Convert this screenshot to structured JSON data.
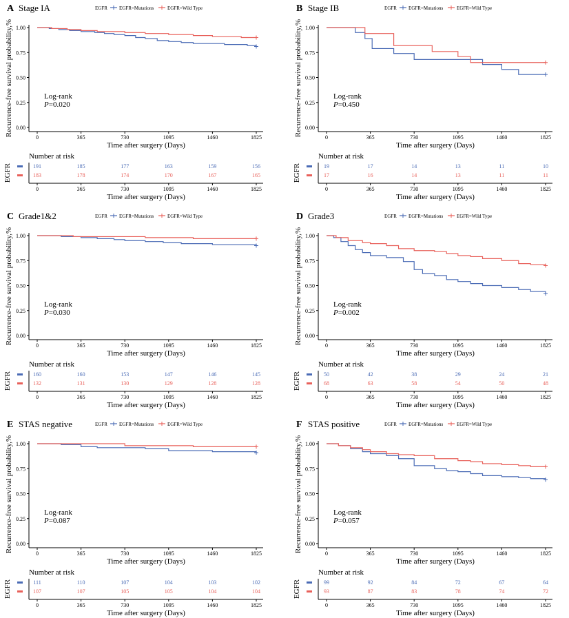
{
  "colors": {
    "mutation": "#4a6bb5",
    "wild": "#e8605a"
  },
  "chart_data": [
    {
      "type": "line",
      "letter": "A",
      "title": "Stage IA",
      "legend_title": "EGFR",
      "legend_placement": "top",
      "legend_items": [
        "EGFR=Mutations",
        "EGFR=Wild Type"
      ],
      "ylabel": "Recurrence-free survival probability,%",
      "xlabel": "Time after surgery (Days)",
      "x_ticks": [
        "0",
        "365",
        "730",
        "1095",
        "1460",
        "1825"
      ],
      "y_ticks": [
        "0.00",
        "0.25",
        "0.50",
        "0.75",
        "1.00"
      ],
      "xlim": [
        0,
        1825
      ],
      "ylim": [
        0,
        1
      ],
      "logrank": "Log-rank",
      "p_label": "P",
      "p_value": "=0.020",
      "series": [
        {
          "name": "EGFR=Mutations",
          "x": [
            0,
            100,
            180,
            270,
            365,
            480,
            560,
            640,
            730,
            820,
            900,
            1000,
            1095,
            1200,
            1300,
            1400,
            1460,
            1560,
            1650,
            1750,
            1825
          ],
          "y": [
            1,
            0.99,
            0.98,
            0.97,
            0.96,
            0.95,
            0.94,
            0.93,
            0.92,
            0.9,
            0.89,
            0.87,
            0.86,
            0.85,
            0.84,
            0.84,
            0.84,
            0.83,
            0.83,
            0.82,
            0.81
          ]
        },
        {
          "name": "EGFR=Wild Type",
          "x": [
            0,
            120,
            250,
            365,
            500,
            730,
            900,
            1095,
            1300,
            1460,
            1600,
            1700,
            1825
          ],
          "y": [
            1,
            0.99,
            0.98,
            0.97,
            0.96,
            0.95,
            0.94,
            0.93,
            0.92,
            0.91,
            0.91,
            0.9,
            0.9
          ]
        }
      ],
      "risk_title": "Number at risk",
      "risk_label": "EGFR",
      "risk": [
        [
          "191",
          "185",
          "177",
          "163",
          "159",
          "156"
        ],
        [
          "183",
          "178",
          "174",
          "170",
          "167",
          "165"
        ]
      ]
    },
    {
      "type": "line",
      "letter": "B",
      "title": "Stage IB",
      "legend_title": "EGFR",
      "legend_placement": "top",
      "legend_items": [
        "EGFR=Mutations",
        "EGFR=Wild Type"
      ],
      "ylabel": "Recurrence-free survival probability,%",
      "xlabel": "Time after surgery (Days)",
      "x_ticks": [
        "0",
        "365",
        "730",
        "1095",
        "1460",
        "1825"
      ],
      "y_ticks": [
        "0.00",
        "0.25",
        "0.50",
        "0.75",
        "1.00"
      ],
      "xlim": [
        0,
        1825
      ],
      "ylim": [
        0,
        1
      ],
      "logrank": "Log-rank",
      "p_label": "P",
      "p_value": "=0.450",
      "series": [
        {
          "name": "EGFR=Mutations",
          "x": [
            0,
            190,
            240,
            320,
            380,
            560,
            730,
            1095,
            1300,
            1460,
            1600,
            1825
          ],
          "y": [
            1,
            1,
            0.95,
            0.89,
            0.79,
            0.74,
            0.68,
            0.68,
            0.63,
            0.58,
            0.53,
            0.53
          ]
        },
        {
          "name": "EGFR=Wild Type",
          "x": [
            0,
            320,
            560,
            880,
            1095,
            1200,
            1460,
            1825
          ],
          "y": [
            1,
            0.94,
            0.82,
            0.76,
            0.71,
            0.65,
            0.65,
            0.65
          ]
        }
      ],
      "risk_title": "Number at risk",
      "risk_label": "EGFR",
      "risk": [
        [
          "19",
          "17",
          "14",
          "13",
          "11",
          "10"
        ],
        [
          "17",
          "16",
          "14",
          "13",
          "11",
          "11"
        ]
      ]
    },
    {
      "type": "line",
      "letter": "C",
      "title": "Grade1&2",
      "legend_title": "EGFR",
      "legend_placement": "top",
      "legend_items": [
        "EGFR=Mutations",
        "EGFR=Wild Type"
      ],
      "ylabel": "Recurrence-free survival probability,%",
      "xlabel": "Time after surgery (Days)",
      "x_ticks": [
        "0",
        "365",
        "730",
        "1095",
        "1460",
        "1825"
      ],
      "y_ticks": [
        "0.00",
        "0.25",
        "0.50",
        "0.75",
        "1.00"
      ],
      "xlim": [
        0,
        1825
      ],
      "ylim": [
        0,
        1
      ],
      "logrank": "Log-rank",
      "p_label": "P",
      "p_value": "=0.030",
      "series": [
        {
          "name": "EGFR=Mutations",
          "x": [
            0,
            200,
            365,
            500,
            640,
            730,
            900,
            1050,
            1200,
            1400,
            1460,
            1600,
            1825
          ],
          "y": [
            1,
            0.99,
            0.98,
            0.97,
            0.96,
            0.95,
            0.94,
            0.93,
            0.92,
            0.92,
            0.91,
            0.91,
            0.9
          ]
        },
        {
          "name": "EGFR=Wild Type",
          "x": [
            0,
            300,
            600,
            900,
            1095,
            1300,
            1460,
            1825
          ],
          "y": [
            1,
            0.99,
            0.99,
            0.98,
            0.98,
            0.97,
            0.97,
            0.97
          ]
        }
      ],
      "risk_title": "Number at risk",
      "risk_label": "EGFR",
      "risk": [
        [
          "160",
          "160",
          "153",
          "147",
          "146",
          "145"
        ],
        [
          "132",
          "131",
          "130",
          "129",
          "128",
          "128"
        ]
      ]
    },
    {
      "type": "line",
      "letter": "D",
      "title": "Grade3",
      "legend_title": "EGFR",
      "legend_placement": "top",
      "legend_items": [
        "EGFR=Mutations",
        "EGFR=Wild Type"
      ],
      "ylabel": "Recurrence-free survival probability,%",
      "xlabel": "Time after surgery (Days)",
      "x_ticks": [
        "0",
        "365",
        "730",
        "1095",
        "1460",
        "1825"
      ],
      "y_ticks": [
        "0.00",
        "0.25",
        "0.50",
        "0.75",
        "1.00"
      ],
      "xlim": [
        0,
        1825
      ],
      "ylim": [
        0,
        1
      ],
      "logrank": "Log-rank",
      "p_label": "P",
      "p_value": "=0.002",
      "series": [
        {
          "name": "EGFR=Mutations",
          "x": [
            0,
            60,
            120,
            180,
            240,
            300,
            365,
            500,
            640,
            730,
            800,
            900,
            1000,
            1095,
            1200,
            1300,
            1460,
            1600,
            1700,
            1825
          ],
          "y": [
            1,
            0.98,
            0.94,
            0.9,
            0.86,
            0.83,
            0.8,
            0.78,
            0.74,
            0.66,
            0.62,
            0.6,
            0.56,
            0.54,
            0.52,
            0.5,
            0.48,
            0.46,
            0.44,
            0.42
          ]
        },
        {
          "name": "EGFR=Wild Type",
          "x": [
            0,
            80,
            180,
            300,
            365,
            500,
            600,
            730,
            900,
            1000,
            1095,
            1200,
            1300,
            1460,
            1600,
            1700,
            1825
          ],
          "y": [
            1,
            0.98,
            0.95,
            0.93,
            0.92,
            0.9,
            0.87,
            0.85,
            0.84,
            0.82,
            0.8,
            0.79,
            0.77,
            0.75,
            0.72,
            0.71,
            0.7
          ]
        }
      ],
      "risk_title": "Number at risk",
      "risk_label": "EGFR",
      "risk": [
        [
          "50",
          "42",
          "38",
          "29",
          "24",
          "21"
        ],
        [
          "68",
          "63",
          "58",
          "54",
          "50",
          "48"
        ]
      ]
    },
    {
      "type": "line",
      "letter": "E",
      "title": "STAS negative",
      "legend_title": "EGFR",
      "legend_placement": "top",
      "legend_items": [
        "EGFR=Mutations",
        "EGFR=Wild Type"
      ],
      "ylabel": "Recurrence-free survival probability,%",
      "xlabel": "Time after surgery (Days)",
      "x_ticks": [
        "0",
        "365",
        "730",
        "1095",
        "1460",
        "1825"
      ],
      "y_ticks": [
        "0.00",
        "0.25",
        "0.50",
        "0.75",
        "1.00"
      ],
      "xlim": [
        0,
        1825
      ],
      "ylim": [
        0,
        1
      ],
      "logrank": "Log-rank",
      "p_label": "P",
      "p_value": "=0.087",
      "series": [
        {
          "name": "EGFR=Mutations",
          "x": [
            0,
            200,
            365,
            500,
            730,
            900,
            1095,
            1300,
            1460,
            1600,
            1825
          ],
          "y": [
            1,
            0.99,
            0.97,
            0.96,
            0.96,
            0.95,
            0.93,
            0.93,
            0.92,
            0.92,
            0.91
          ]
        },
        {
          "name": "EGFR=Wild Type",
          "x": [
            0,
            365,
            730,
            1000,
            1300,
            1460,
            1825
          ],
          "y": [
            1,
            1,
            0.98,
            0.98,
            0.97,
            0.97,
            0.97
          ]
        }
      ],
      "risk_title": "Number at risk",
      "risk_label": "EGFR",
      "risk": [
        [
          "111",
          "110",
          "107",
          "104",
          "103",
          "102"
        ],
        [
          "107",
          "107",
          "105",
          "105",
          "104",
          "104"
        ]
      ]
    },
    {
      "type": "line",
      "letter": "F",
      "title": "STAS positive",
      "legend_title": "EGFR",
      "legend_placement": "top",
      "legend_items": [
        "EGFR=Mutations",
        "EGFR=Wild Type"
      ],
      "ylabel": "Recurrence-free survival probability,%",
      "xlabel": "Time after surgery (Days)",
      "x_ticks": [
        "0",
        "365",
        "730",
        "1095",
        "1460",
        "1825"
      ],
      "y_ticks": [
        "0.00",
        "0.25",
        "0.50",
        "0.75",
        "1.00"
      ],
      "xlim": [
        0,
        1825
      ],
      "ylim": [
        0,
        1
      ],
      "logrank": "Log-rank",
      "p_label": "P",
      "p_value": "=0.057",
      "series": [
        {
          "name": "EGFR=Mutations",
          "x": [
            0,
            100,
            200,
            300,
            365,
            500,
            600,
            730,
            900,
            1000,
            1095,
            1200,
            1300,
            1460,
            1600,
            1700,
            1825
          ],
          "y": [
            1,
            0.98,
            0.95,
            0.92,
            0.9,
            0.88,
            0.85,
            0.78,
            0.75,
            0.73,
            0.72,
            0.7,
            0.68,
            0.67,
            0.66,
            0.65,
            0.64
          ]
        },
        {
          "name": "EGFR=Wild Type",
          "x": [
            0,
            100,
            200,
            300,
            365,
            500,
            600,
            730,
            900,
            1095,
            1200,
            1300,
            1460,
            1600,
            1700,
            1825
          ],
          "y": [
            1,
            0.98,
            0.96,
            0.94,
            0.92,
            0.9,
            0.89,
            0.88,
            0.85,
            0.83,
            0.82,
            0.8,
            0.79,
            0.78,
            0.77,
            0.77
          ]
        }
      ],
      "risk_title": "Number at risk",
      "risk_label": "EGFR",
      "risk": [
        [
          "99",
          "92",
          "84",
          "72",
          "67",
          "64"
        ],
        [
          "93",
          "87",
          "83",
          "78",
          "74",
          "72"
        ]
      ]
    }
  ]
}
